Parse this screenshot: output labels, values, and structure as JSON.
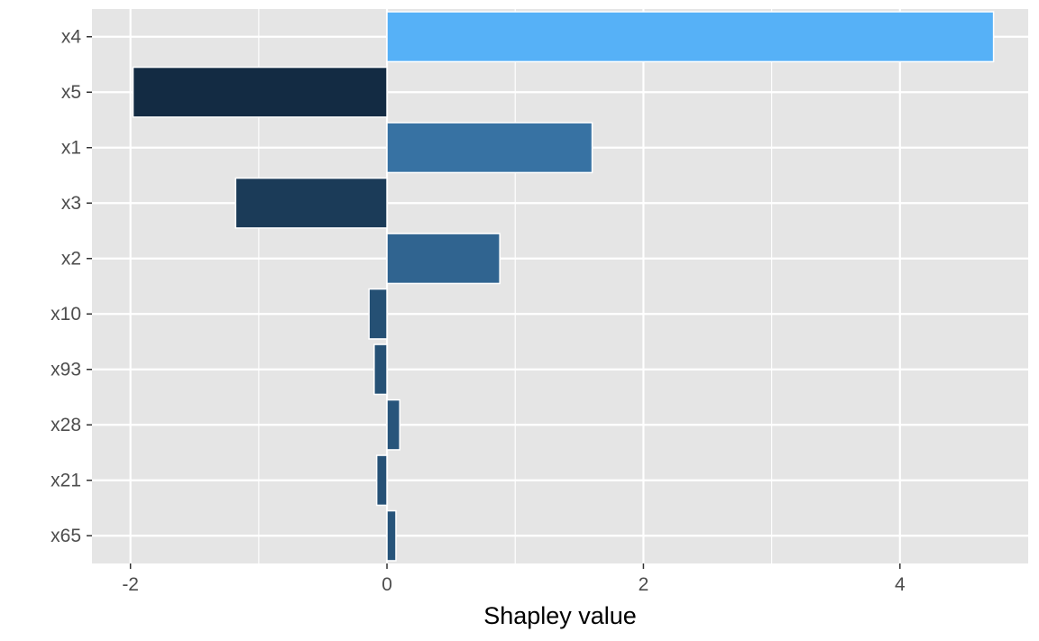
{
  "chart_data": {
    "type": "bar",
    "orientation": "horizontal",
    "title": "",
    "xlabel": "Shapley value",
    "ylabel": "",
    "xlim": [
      -2.3,
      5.0
    ],
    "xticks": [
      -2,
      0,
      2,
      4
    ],
    "xtick_labels": [
      "-2",
      "0",
      "2",
      "4"
    ],
    "grid": true,
    "legend": "none",
    "categories": [
      "x4",
      "x5",
      "x1",
      "x3",
      "x2",
      "x10",
      "x93",
      "x28",
      "x21",
      "x65"
    ],
    "values": [
      4.73,
      -1.98,
      1.6,
      -1.18,
      0.88,
      -0.14,
      -0.1,
      0.1,
      -0.08,
      0.07
    ]
  },
  "colors": {
    "panel_background": "#E5E5E5",
    "grid": "#FFFFFF",
    "low_color": "#132B43",
    "high_color": "#56B1F7"
  }
}
